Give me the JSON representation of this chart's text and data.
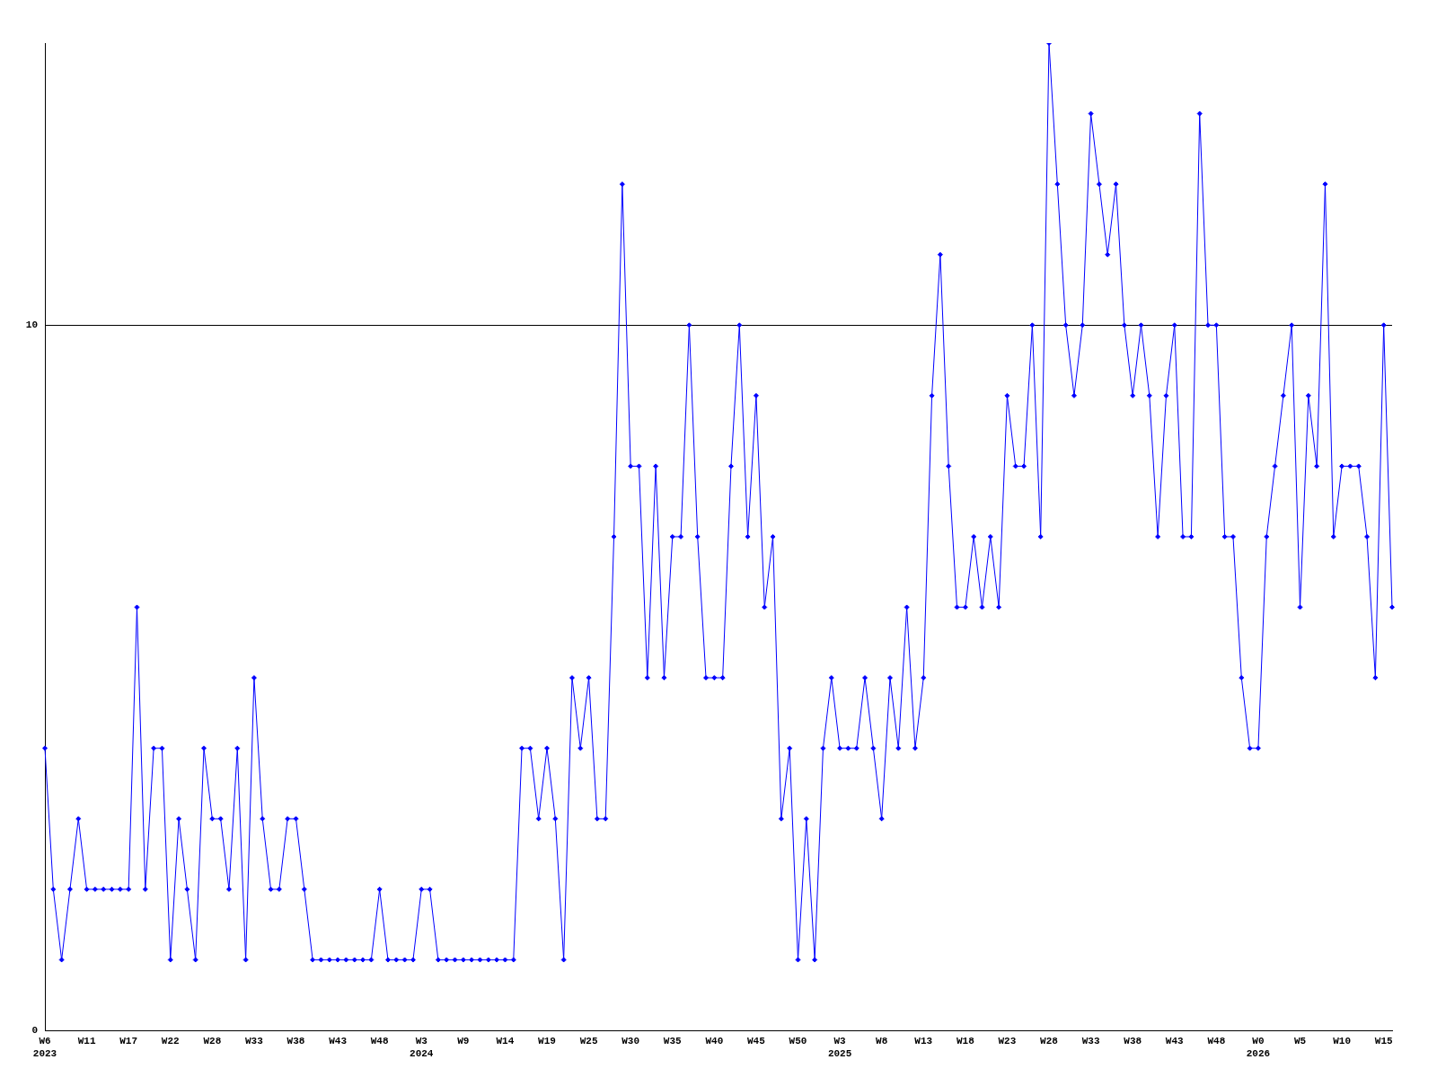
{
  "chart_data": {
    "type": "line",
    "categories": [
      "W6\n2023",
      null,
      null,
      null,
      null,
      "W11",
      null,
      null,
      null,
      null,
      "W17",
      null,
      null,
      null,
      null,
      "W22",
      null,
      null,
      null,
      null,
      "W28",
      null,
      null,
      null,
      null,
      "W33",
      null,
      null,
      null,
      null,
      "W38",
      null,
      null,
      null,
      null,
      "W43",
      null,
      null,
      null,
      null,
      "W48",
      null,
      null,
      null,
      null,
      "W3\n2024",
      null,
      null,
      null,
      null,
      "W9",
      null,
      null,
      null,
      null,
      "W14",
      null,
      null,
      null,
      null,
      "W19",
      null,
      null,
      null,
      null,
      "W25",
      null,
      null,
      null,
      null,
      "W30",
      null,
      null,
      null,
      null,
      "W35",
      null,
      null,
      null,
      null,
      "W40",
      null,
      null,
      null,
      null,
      "W45",
      null,
      null,
      null,
      null,
      "W50",
      null,
      null,
      null,
      null,
      "W3\n2025",
      null,
      null,
      null,
      null,
      "W8",
      null,
      null,
      null,
      null,
      "W13",
      null,
      null,
      null,
      null,
      "W18",
      null,
      null,
      null,
      null,
      "W23",
      null,
      null,
      null,
      null,
      "W28",
      null,
      null,
      null,
      null,
      "W33",
      null,
      null,
      null,
      null,
      "W38",
      null,
      null,
      null,
      null,
      "W43",
      null,
      null,
      null,
      null,
      "W48",
      null,
      null,
      null,
      null,
      "W0\n2026",
      null,
      null,
      null,
      null,
      "W5",
      null,
      null,
      null,
      null,
      "W10",
      null,
      null,
      null,
      null,
      "W15",
      null
    ],
    "series": [
      {
        "color": "#0000ff",
        "values": [
          4,
          2,
          1,
          2,
          3,
          2,
          2,
          2,
          2,
          2,
          2,
          6,
          2,
          4,
          4,
          1,
          3,
          2,
          1,
          4,
          3,
          3,
          2,
          4,
          1,
          5,
          3,
          2,
          2,
          3,
          3,
          2,
          1,
          1,
          1,
          1,
          1,
          1,
          1,
          1,
          2,
          1,
          1,
          1,
          1,
          2,
          2,
          1,
          1,
          1,
          1,
          1,
          1,
          1,
          1,
          1,
          1,
          4,
          4,
          3,
          4,
          3,
          1,
          5,
          4,
          5,
          3,
          3,
          7,
          12,
          8,
          8,
          5,
          8,
          5,
          7,
          7,
          10,
          7,
          5,
          5,
          5,
          8,
          10,
          7,
          9,
          6,
          7,
          3,
          4,
          1,
          3,
          1,
          4,
          5,
          4,
          4,
          4,
          5,
          4,
          3,
          5,
          4,
          6,
          4,
          5,
          9,
          11,
          8,
          6,
          6,
          7,
          6,
          7,
          6,
          9,
          8,
          8,
          10,
          7,
          14,
          12,
          10,
          9,
          10,
          13,
          12,
          11,
          12,
          10,
          9,
          10,
          9,
          7,
          9,
          10,
          7,
          7,
          13,
          10,
          10,
          7,
          7,
          5,
          4,
          4,
          7,
          8,
          9,
          10,
          6,
          9,
          8,
          12,
          7,
          8,
          8,
          8,
          7,
          5,
          10,
          6
        ]
      }
    ],
    "ylim": [
      0,
      14
    ],
    "yticks": [
      0,
      10
    ],
    "grid": "y",
    "marker": "diamond",
    "line_style": "solid"
  }
}
